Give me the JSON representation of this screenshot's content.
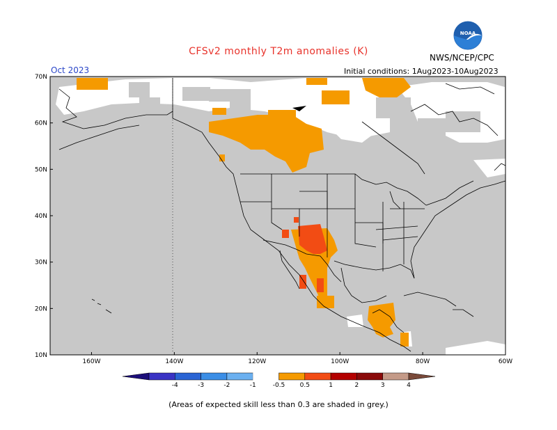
{
  "header": {
    "title": "CFSv2 monthly T2m anomalies (K)",
    "month": "Oct 2023",
    "initial_conditions": "Initial conditions: 1Aug2023-10Aug2023",
    "organization": "NWS/NCEP/CPC",
    "logo_text": "NOAA"
  },
  "map": {
    "lon_range": [
      -170,
      -60
    ],
    "lat_range": [
      10,
      70
    ],
    "lat_ticks": [
      "10N",
      "20N",
      "30N",
      "40N",
      "50N",
      "60N",
      "70N"
    ],
    "lon_ticks": [
      "160W",
      "140W",
      "120W",
      "100W",
      "80W",
      "60W"
    ],
    "skill_shade_color": "#c8c8c8",
    "land_color": "#ffffff"
  },
  "colorbar": {
    "labels": [
      "-4",
      "-3",
      "-2",
      "-1",
      "-0.5",
      "0.5",
      "1",
      "2",
      "3",
      "4"
    ],
    "colors": [
      "#1c0f7a",
      "#3a33c4",
      "#2a64d4",
      "#3b8ee6",
      "#6bb0f0",
      "#ffffff",
      "#f59a00",
      "#f24c14",
      "#b30000",
      "#8a0a0a",
      "#c49a88",
      "#7a4a3a"
    ]
  },
  "footnote": "(Areas of expected skill less than 0.3 are shaded in grey.)"
}
